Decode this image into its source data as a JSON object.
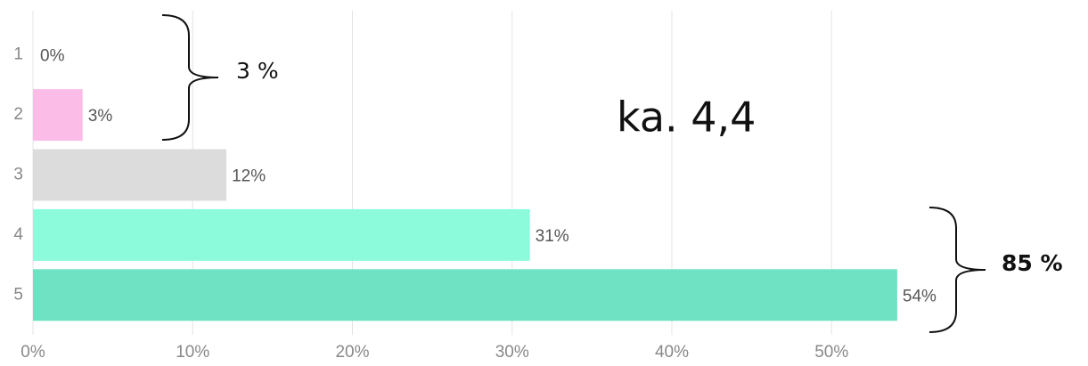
{
  "chart_data": {
    "type": "hbar",
    "categories": [
      "1",
      "2",
      "3",
      "4",
      "5"
    ],
    "values": [
      0,
      3,
      12,
      31,
      54
    ],
    "value_labels": [
      "0%",
      "3%",
      "12%",
      "31%",
      "54%"
    ],
    "colors": [
      "#d676c8",
      "#fbbde8",
      "#dcdcdc",
      "#8cfbdc",
      "#6ee2c2"
    ],
    "xlim": [
      0,
      66
    ],
    "xticks": [
      {
        "value": 0,
        "label": "0%"
      },
      {
        "value": 10,
        "label": "10%"
      },
      {
        "value": 20,
        "label": "20%"
      },
      {
        "value": 30,
        "label": "30%"
      },
      {
        "value": 40,
        "label": "40%"
      },
      {
        "value": 50,
        "label": "50%"
      }
    ],
    "grid": true,
    "annotations": [
      "3 %",
      "85 %",
      "ka. 4,4"
    ]
  }
}
